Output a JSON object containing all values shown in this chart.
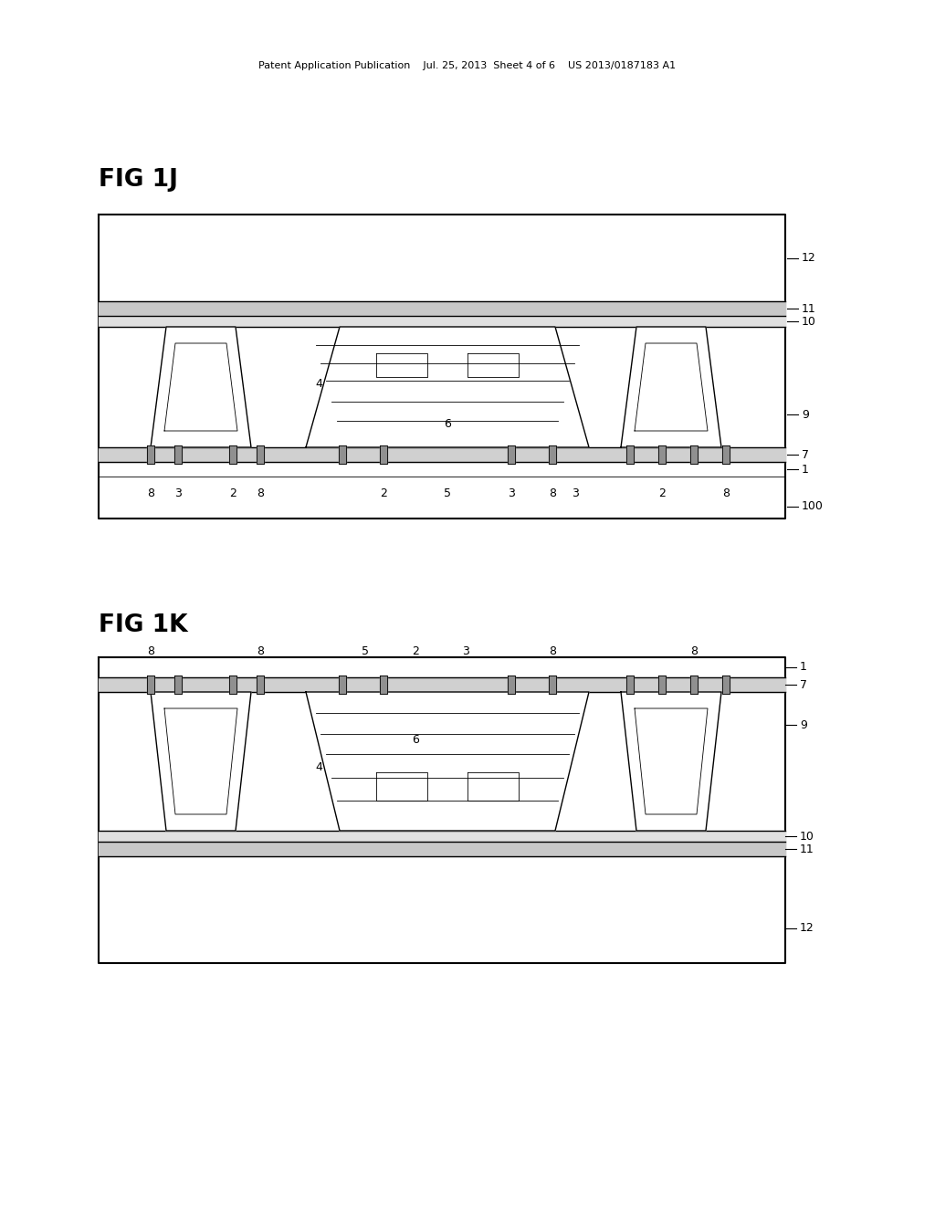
{
  "bg_color": "#ffffff",
  "lc": "#000000",
  "header": "Patent Application Publication    Jul. 25, 2013  Sheet 4 of 6    US 2013/0187183 A1",
  "fig1j_label": "FIG 1J",
  "fig1k_label": "FIG 1K",
  "lw_outer": 1.5,
  "lw_med": 1.0,
  "lw_thin": 0.6
}
